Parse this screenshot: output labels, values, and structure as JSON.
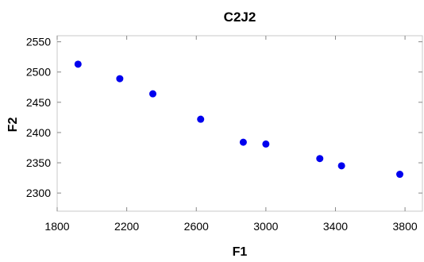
{
  "chart_data": {
    "type": "scatter",
    "title": "C2J2",
    "xlabel": "F1",
    "ylabel": "F2",
    "xlim": [
      1800,
      3900
    ],
    "ylim": [
      2270,
      2560
    ],
    "xticks": [
      1800,
      2200,
      2600,
      3000,
      3400,
      3800
    ],
    "yticks": [
      2300,
      2350,
      2400,
      2450,
      2500,
      2550
    ],
    "grid": false,
    "marker_color": "#0000ee",
    "series": [
      {
        "x": [
          1920,
          2160,
          2350,
          2625,
          2870,
          3000,
          3310,
          3435,
          3770
        ],
        "y": [
          2513,
          2489,
          2464,
          2422,
          2384,
          2381,
          2357,
          2345,
          2331
        ]
      }
    ]
  }
}
